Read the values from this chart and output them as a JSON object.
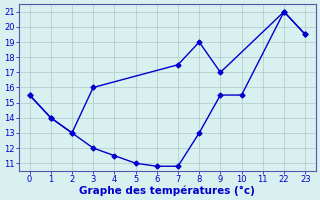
{
  "xtick_labels": [
    "0",
    "1",
    "2",
    "3",
    "4",
    "5",
    "6",
    "7",
    "8",
    "9",
    "10",
    "11",
    "22",
    "23"
  ],
  "ytick_labels": [
    "11",
    "12",
    "13",
    "14",
    "15",
    "16",
    "17",
    "18",
    "19",
    "20",
    "21"
  ],
  "ytick_vals": [
    11,
    12,
    13,
    14,
    15,
    16,
    17,
    18,
    19,
    20,
    21
  ],
  "line1_xi": [
    0,
    1,
    2,
    3,
    7,
    8,
    9,
    12,
    13
  ],
  "line1_y": [
    15.5,
    14.0,
    13.0,
    16.0,
    17.5,
    19.0,
    17.0,
    21.0,
    19.5
  ],
  "line2_xi": [
    0,
    1,
    2,
    3,
    4,
    5,
    6,
    7,
    8,
    9,
    10,
    12,
    13
  ],
  "line2_y": [
    15.5,
    14.0,
    13.0,
    12.0,
    11.5,
    11.0,
    10.8,
    10.8,
    13.0,
    15.5,
    15.5,
    21.0,
    19.5
  ],
  "line_color": "#0000cc",
  "marker": "D",
  "markersize": 2.5,
  "linewidth": 1.0,
  "xlabel": "Graphe des températures (°c)",
  "xlabel_fontsize": 7.5,
  "bg_color": "#d8f0f0",
  "grid_color": "#b0c8c8",
  "spine_color": "#5555aa",
  "tick_color": "#0000cc",
  "label_color": "#0000cc",
  "ylim": [
    10.5,
    21.5
  ],
  "tick_fontsize": 6.0
}
